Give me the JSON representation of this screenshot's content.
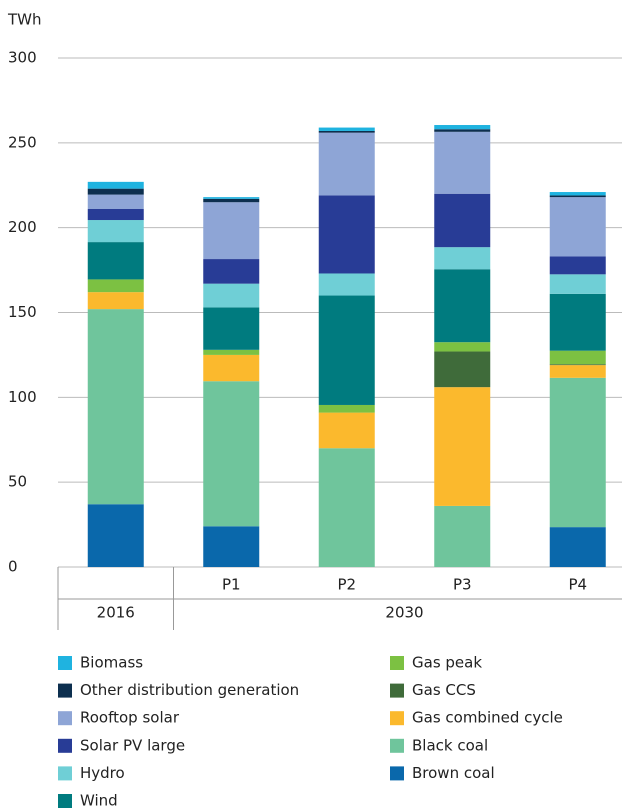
{
  "chart_data": {
    "type": "stacked_bar",
    "y_axis_label": "TWh",
    "categories": [
      null,
      "P1",
      "P2",
      "P3",
      "P4"
    ],
    "groups": [
      {
        "label": "2016",
        "span": 1
      },
      {
        "label": "2030",
        "span": 4
      }
    ],
    "ylim": [
      0,
      300
    ],
    "yticks": [
      0,
      50,
      100,
      150,
      200,
      250,
      300
    ],
    "grid": true,
    "series": [
      {
        "name": "Biomass",
        "color": "#1fb3e0",
        "values": [
          4,
          1,
          2,
          2.5,
          2
        ]
      },
      {
        "name": "Other distribution generation",
        "color": "#0d2f4f",
        "values": [
          3.5,
          2,
          1,
          1.5,
          1
        ]
      },
      {
        "name": "Rooftop solar",
        "color": "#8ea5d6",
        "values": [
          8.5,
          33.5,
          37,
          36.5,
          35
        ]
      },
      {
        "name": "Solar PV large",
        "color": "#283c96",
        "values": [
          6.5,
          14.5,
          46,
          31.5,
          10.5
        ]
      },
      {
        "name": "Hydro",
        "color": "#6fcfd6",
        "values": [
          13,
          14,
          13,
          13,
          11.5
        ]
      },
      {
        "name": "Wind",
        "color": "#007b7f",
        "values": [
          22,
          25,
          64.5,
          43,
          33.5
        ]
      },
      {
        "name": "Gas peak",
        "color": "#7cc142",
        "values": [
          7.5,
          3,
          4.5,
          5.5,
          8
        ]
      },
      {
        "name": "Gas CCS",
        "color": "#3f6b3a",
        "values": [
          0,
          0,
          0,
          21,
          0.5
        ]
      },
      {
        "name": "Gas combined cycle",
        "color": "#fbb92d",
        "values": [
          10,
          15.5,
          21,
          70,
          7.5
        ]
      },
      {
        "name": "Black coal",
        "color": "#6fc59c",
        "values": [
          115,
          85.5,
          70,
          36,
          88
        ]
      },
      {
        "name": "Brown coal",
        "color": "#0a68ab",
        "values": [
          37,
          24,
          0,
          0,
          23.5
        ]
      }
    ]
  }
}
